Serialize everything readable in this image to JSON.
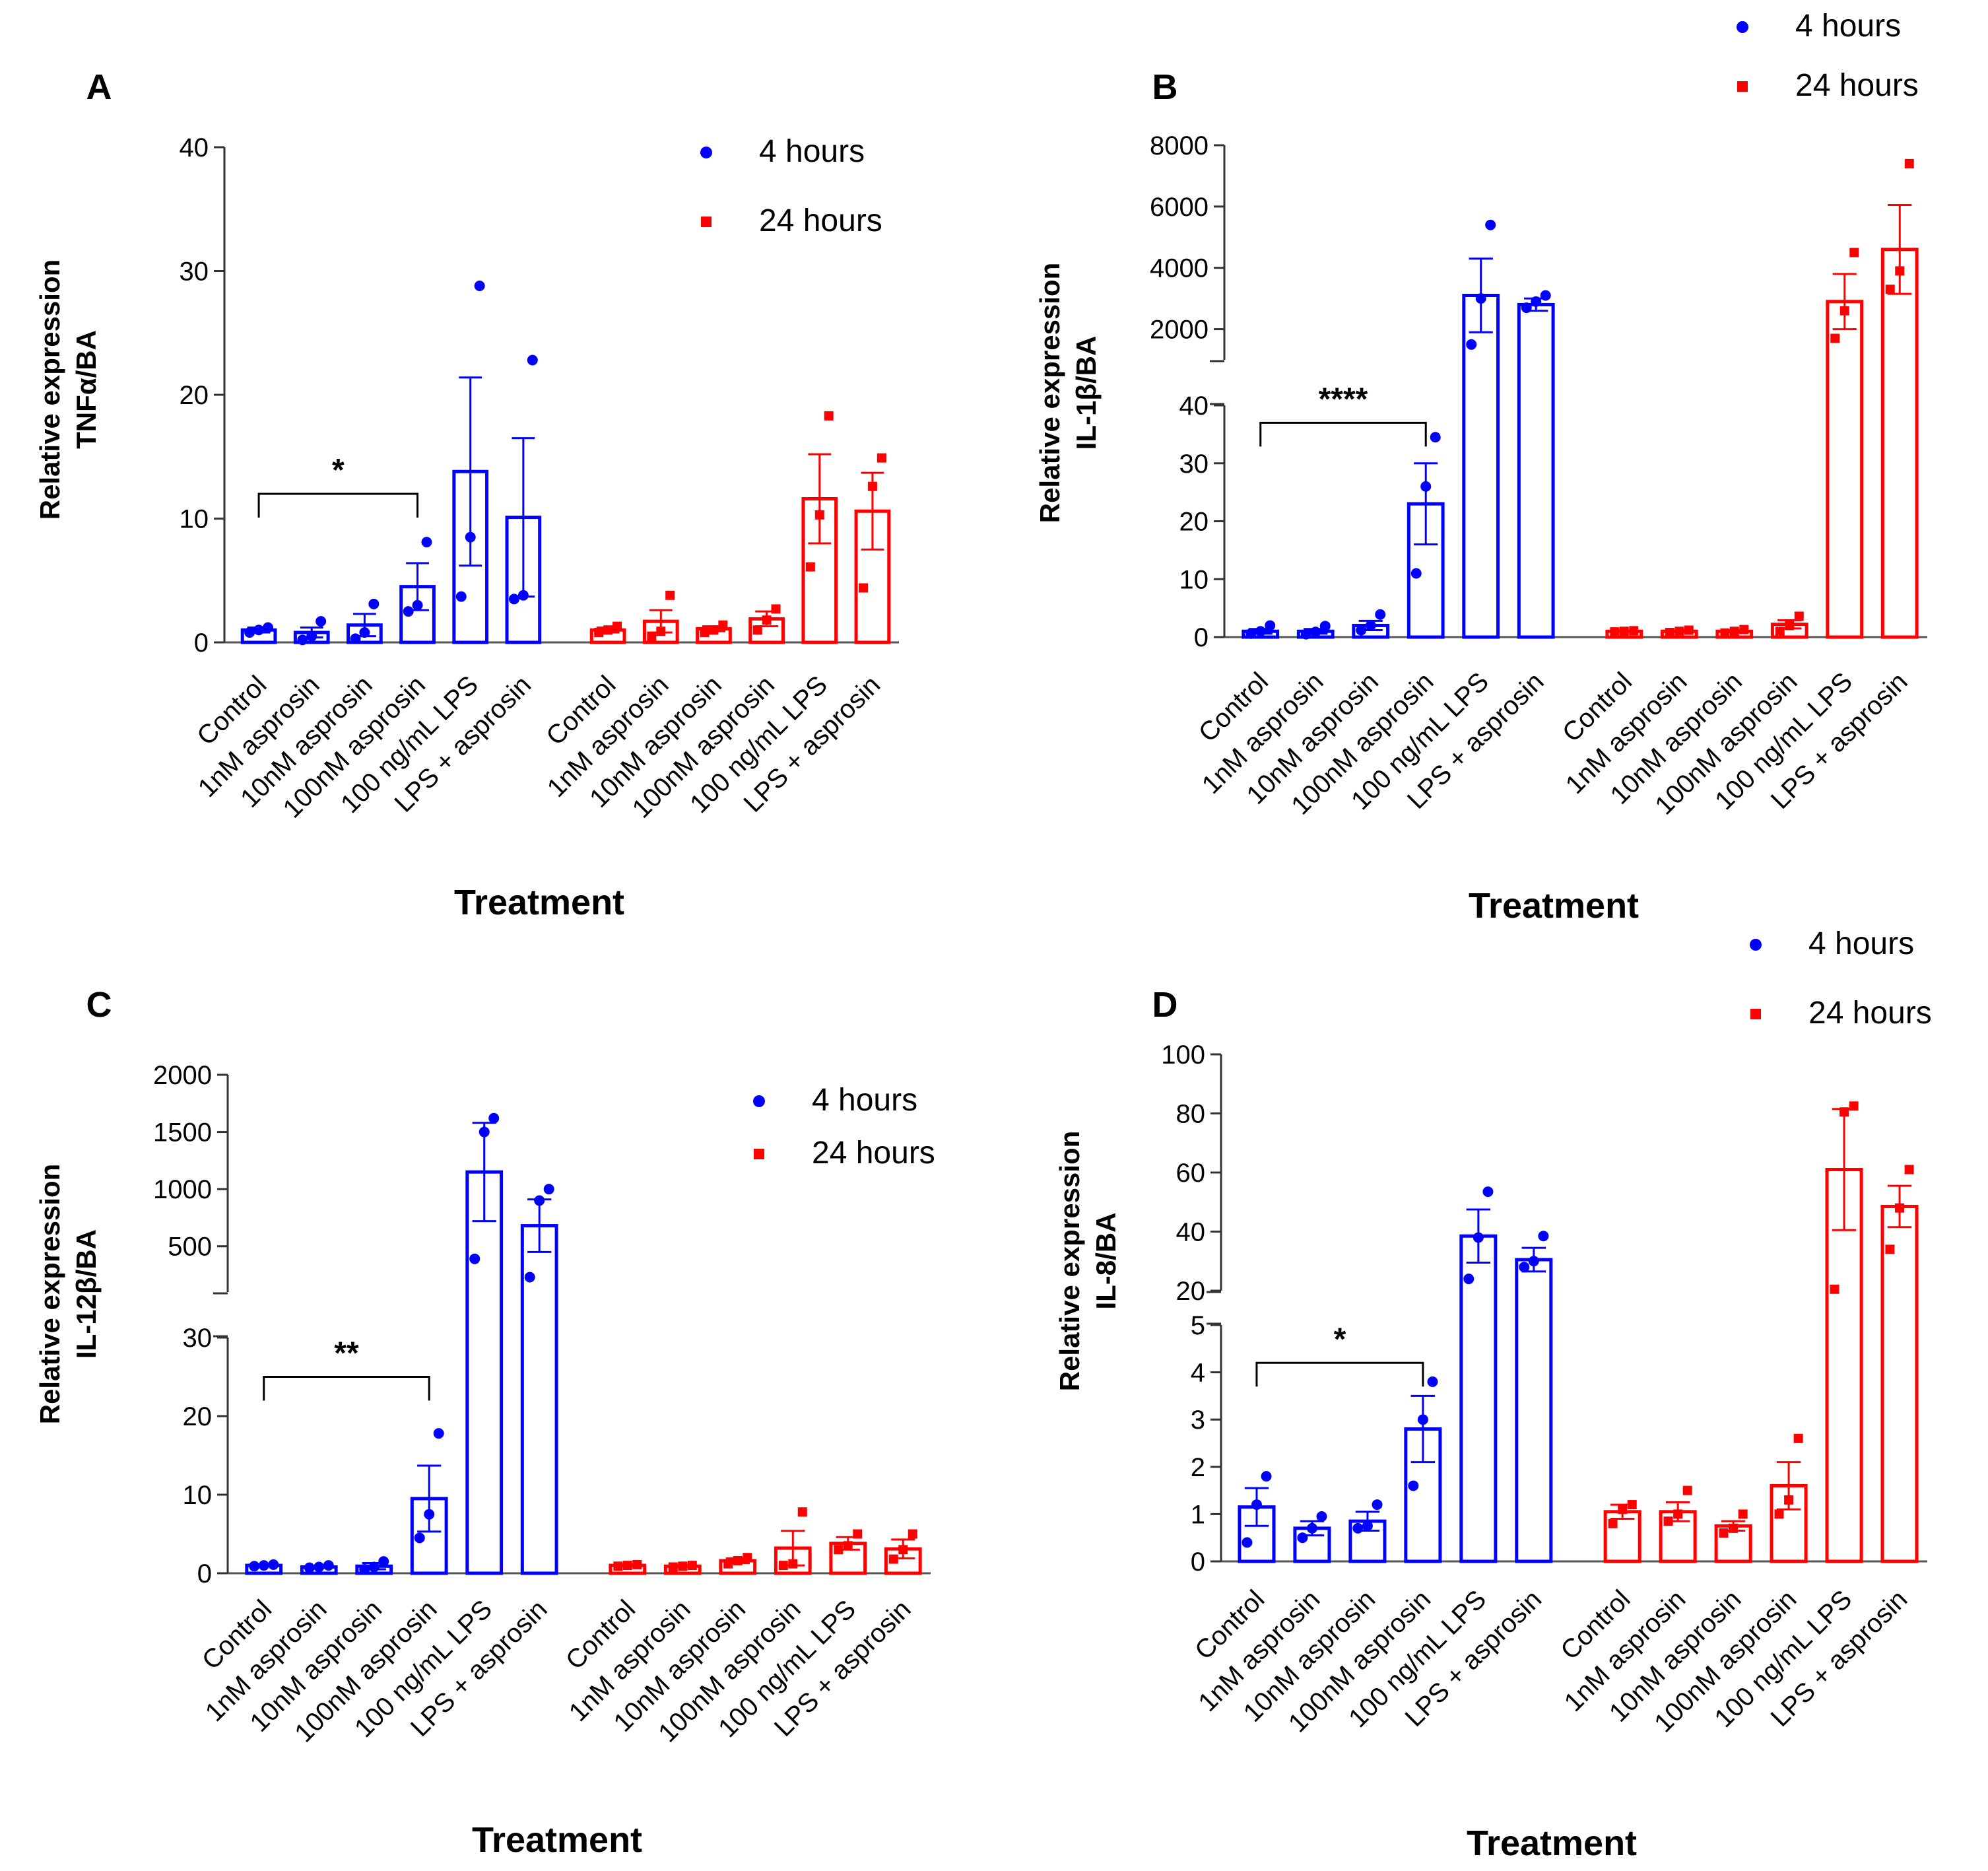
{
  "colors": {
    "h4": "#0000ff",
    "h24": "#ff0000",
    "axis": "#666666"
  },
  "legend": {
    "h4": "4 hours",
    "h24": "24 hours"
  },
  "categories": [
    "Control",
    "1nM asprosin",
    "10nM asprosin",
    "100nM asprosin",
    "100 ng/mL LPS",
    "LPS + asprosin"
  ],
  "chart_data": [
    {
      "panel": "A",
      "type": "bar",
      "title": "A",
      "ylabel_line1": "Relative expression",
      "ylabel_line2": "TNFα/BA",
      "xlabel": "Treatment",
      "ylim": [
        0,
        40
      ],
      "yticks": [
        0,
        10,
        20,
        30,
        40
      ],
      "significance": {
        "label": "*",
        "from": "Control",
        "to": "100nM asprosin",
        "series": "4 hours"
      },
      "series": [
        {
          "name": "4 hours",
          "values": [
            1.0,
            0.8,
            1.4,
            4.5,
            13.8,
            10.1
          ],
          "sem": [
            0.2,
            0.4,
            0.9,
            1.9,
            7.6,
            6.4
          ],
          "points": [
            [
              0.8,
              1.0,
              1.2
            ],
            [
              0.2,
              0.5,
              1.7
            ],
            [
              0.3,
              0.8,
              3.1
            ],
            [
              2.5,
              3.0,
              8.1
            ],
            [
              3.7,
              8.5,
              28.8
            ],
            [
              3.5,
              3.8,
              22.8
            ]
          ]
        },
        {
          "name": "24 hours",
          "values": [
            1.0,
            1.7,
            1.1,
            1.9,
            11.6,
            10.6
          ],
          "sem": [
            0.2,
            0.9,
            0.2,
            0.6,
            3.6,
            3.1
          ],
          "points": [
            [
              0.8,
              1.0,
              1.3
            ],
            [
              0.5,
              0.9,
              3.8
            ],
            [
              0.8,
              1.0,
              1.4
            ],
            [
              1.0,
              1.8,
              2.7
            ],
            [
              6.1,
              10.3,
              18.3
            ],
            [
              4.4,
              12.6,
              14.9
            ]
          ]
        }
      ]
    },
    {
      "panel": "B",
      "type": "bar",
      "title": "B",
      "ylabel_line1": "Relative expression",
      "ylabel_line2": "IL-1β/BA",
      "xlabel": "Treatment",
      "broken_axis": true,
      "lower_ylim": [
        0,
        40
      ],
      "lower_yticks": [
        0,
        10,
        20,
        30,
        40
      ],
      "upper_ylim": [
        1000,
        8000
      ],
      "upper_yticks": [
        2000,
        4000,
        6000,
        8000
      ],
      "significance": {
        "label": "****",
        "from": "Control",
        "to": "100nM asprosin",
        "series": "4 hours"
      },
      "series": [
        {
          "name": "4 hours",
          "values": [
            1.0,
            1.0,
            2.0,
            23.0,
            3100,
            2800
          ],
          "sem": [
            0.4,
            0.4,
            0.8,
            7.0,
            1200,
            200
          ],
          "points": [
            [
              0.6,
              1.0,
              2.0
            ],
            [
              0.5,
              0.9,
              1.9
            ],
            [
              1.2,
              2.0,
              3.9
            ],
            [
              11.0,
              26.0,
              34.5
            ],
            [
              1500,
              3000,
              5400
            ],
            [
              2700,
              2900,
              3100
            ]
          ]
        },
        {
          "name": "24 hours",
          "values": [
            1.0,
            1.0,
            1.0,
            2.2,
            2900,
            4600
          ],
          "sem": [
            0.1,
            0.1,
            0.2,
            0.7,
            900,
            1450
          ],
          "points": [
            [
              0.9,
              1.0,
              1.1
            ],
            [
              0.8,
              1.0,
              1.2
            ],
            [
              0.7,
              1.0,
              1.3
            ],
            [
              1.0,
              2.0,
              3.6
            ],
            [
              1700,
              2600,
              4500
            ],
            [
              3300,
              3900,
              7400
            ]
          ]
        }
      ]
    },
    {
      "panel": "C",
      "type": "bar",
      "title": "C",
      "ylabel_line1": "Relative expression",
      "ylabel_line2": "IL-12β/BA",
      "xlabel": "Treatment",
      "broken_axis": true,
      "lower_ylim": [
        0,
        30
      ],
      "lower_yticks": [
        0,
        10,
        20,
        30
      ],
      "upper_ylim": [
        100,
        2000
      ],
      "upper_yticks": [
        500,
        1000,
        1500,
        2000
      ],
      "significance": {
        "label": "**",
        "from": "Control",
        "to": "100nM asprosin",
        "series": "4 hours"
      },
      "series": [
        {
          "name": "4 hours",
          "values": [
            1.0,
            0.8,
            0.9,
            9.5,
            1150,
            680
          ],
          "sem": [
            0.1,
            0.1,
            0.4,
            4.2,
            430,
            230
          ],
          "points": [
            [
              0.9,
              1.0,
              1.1
            ],
            [
              0.7,
              0.8,
              1.0
            ],
            [
              0.5,
              0.8,
              1.5
            ],
            [
              4.5,
              7.5,
              17.8
            ],
            [
              390,
              1500,
              1620
            ],
            [
              230,
              900,
              1000
            ]
          ]
        },
        {
          "name": "24 hours",
          "values": [
            1.0,
            0.9,
            1.6,
            3.2,
            3.8,
            3.1
          ],
          "sem": [
            0.1,
            0.1,
            0.3,
            2.2,
            0.8,
            1.2
          ],
          "points": [
            [
              0.9,
              1.0,
              1.1
            ],
            [
              0.8,
              0.9,
              1.0
            ],
            [
              1.2,
              1.6,
              2.0
            ],
            [
              1.0,
              1.2,
              7.8
            ],
            [
              3.0,
              3.5,
              5.0
            ],
            [
              1.8,
              3.0,
              5.0
            ]
          ]
        }
      ]
    },
    {
      "panel": "D",
      "type": "bar",
      "title": "D",
      "ylabel_line1": "Relative expression",
      "ylabel_line2": "IL-8/BA",
      "xlabel": "Treatment",
      "broken_axis": true,
      "lower_ylim": [
        0,
        5
      ],
      "lower_yticks": [
        0,
        1,
        2,
        3,
        4,
        5
      ],
      "upper_ylim": [
        20,
        100
      ],
      "upper_yticks": [
        20,
        40,
        60,
        80,
        100
      ],
      "significance": {
        "label": "*",
        "from": "Control",
        "to": "100nM asprosin",
        "series": "4 hours"
      },
      "series": [
        {
          "name": "4 hours",
          "values": [
            1.15,
            0.7,
            0.85,
            2.8,
            38.5,
            30.5
          ],
          "sem": [
            0.4,
            0.15,
            0.2,
            0.7,
            9.0,
            4.0
          ],
          "points": [
            [
              0.4,
              1.2,
              1.8
            ],
            [
              0.5,
              0.7,
              0.95
            ],
            [
              0.7,
              0.75,
              1.2
            ],
            [
              1.6,
              3.0,
              3.8
            ],
            [
              24.0,
              38.0,
              53.5
            ],
            [
              28.0,
              30.0,
              38.5
            ]
          ]
        },
        {
          "name": "24 hours",
          "values": [
            1.05,
            1.05,
            0.75,
            1.6,
            61.0,
            48.5
          ],
          "sem": [
            0.15,
            0.2,
            0.1,
            0.5,
            20.5,
            7.0
          ],
          "points": [
            [
              0.8,
              1.1,
              1.2
            ],
            [
              0.85,
              1.0,
              1.5
            ],
            [
              0.6,
              0.7,
              1.0
            ],
            [
              1.0,
              1.3,
              2.6
            ],
            [
              20.5,
              80.5,
              82.5
            ],
            [
              34.0,
              48.0,
              61.0
            ]
          ]
        }
      ]
    }
  ]
}
